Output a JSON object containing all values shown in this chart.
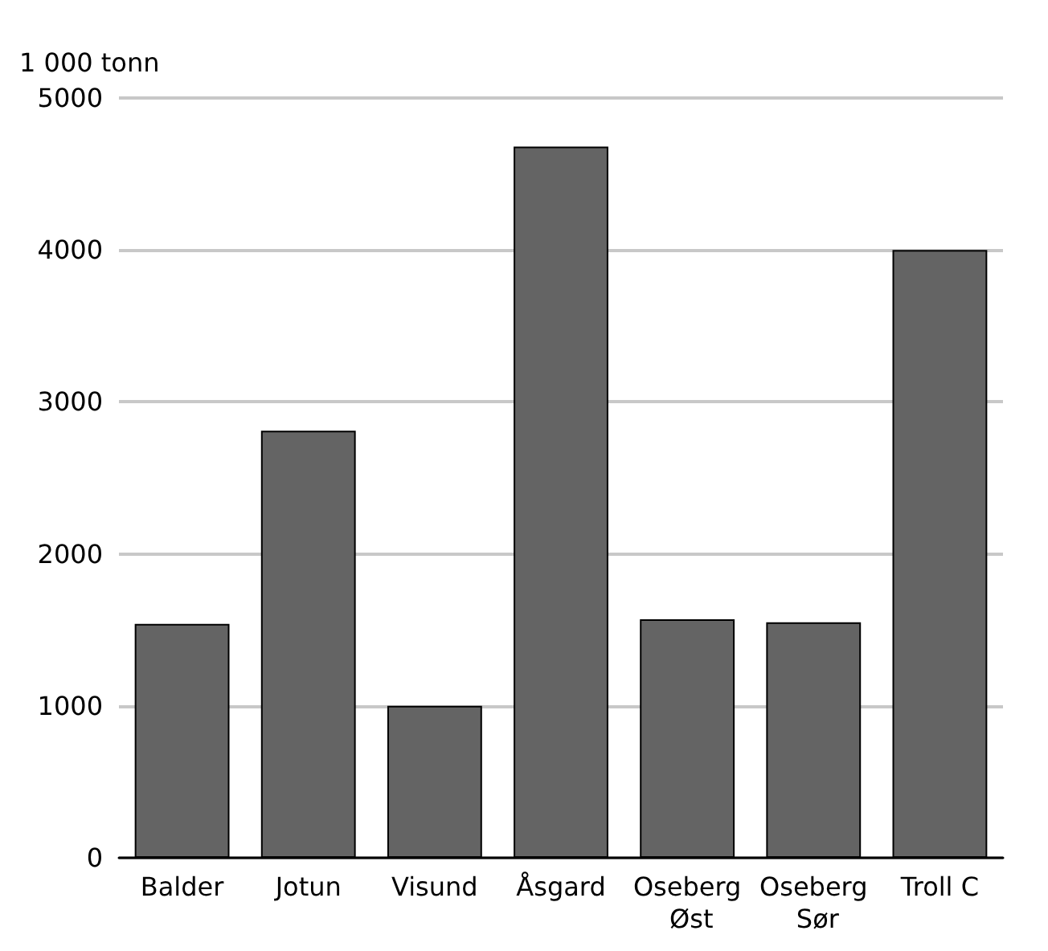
{
  "chart_data": {
    "type": "bar",
    "ylabel": "1 000 tonn",
    "categories": [
      "Balder",
      "Jotun",
      "Visund",
      "Åsgard",
      "Oseberg Øst",
      "Oseberg Sør",
      "Troll C"
    ],
    "values": [
      1540,
      2810,
      1000,
      4680,
      1570,
      1550,
      4000
    ],
    "color": "#646464",
    "ylim": [
      0,
      5000
    ],
    "yticks": [
      0,
      1000,
      2000,
      3000,
      4000,
      5000
    ],
    "grid": "y"
  }
}
